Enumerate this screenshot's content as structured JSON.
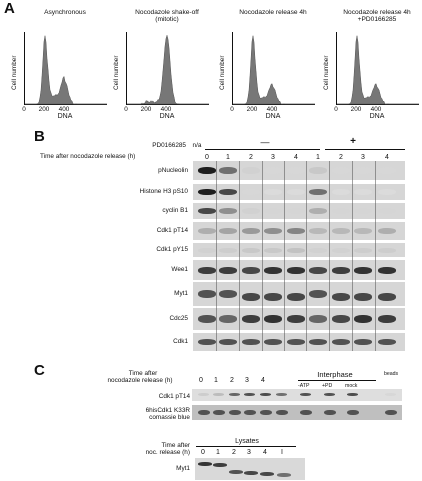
{
  "panelA": {
    "letter": "A",
    "ylabel": "Cell number",
    "xlabel": "DNA",
    "ticks": [
      "0",
      "200",
      "400"
    ],
    "histograms": [
      {
        "title_line1": "Asynchronous",
        "title_line2": "",
        "g1": 1.0,
        "g2": 0.32,
        "s": 0.12
      },
      {
        "title_line1": "Nocodazole shake-off",
        "title_line2": "(mitotic)",
        "g1": 0.04,
        "g2": 1.0,
        "s": 0.03
      },
      {
        "title_line1": "Nocodazole release 4h",
        "title_line2": "",
        "g1": 1.0,
        "g2": 0.24,
        "s": 0.09
      },
      {
        "title_line1": "Nocodazole release 4h",
        "title_line2": "+PD0166285",
        "g1": 1.0,
        "g2": 0.24,
        "s": 0.09
      }
    ]
  },
  "panelB": {
    "letter": "B",
    "inhibitor_label": "PD0166285",
    "na_label": "n/a",
    "minus_label": "—",
    "plus_label": "+",
    "time_label": "Time after nocodazole release (h)",
    "lanes": [
      "0",
      "1",
      "2",
      "3",
      "4",
      "1",
      "2",
      "3",
      "4"
    ],
    "rows": [
      {
        "label": "pNucleolin",
        "intensity": [
          0.95,
          0.55,
          0.08,
          0.05,
          0.05,
          0.12,
          0.05,
          0.05,
          0.05
        ]
      },
      {
        "label": "Histone H3 pS10",
        "intensity": [
          0.95,
          0.75,
          0.05,
          0.03,
          0.03,
          0.55,
          0.03,
          0.03,
          0.03
        ]
      },
      {
        "label": "cyclin B1",
        "intensity": [
          0.75,
          0.4,
          0.08,
          0.06,
          0.06,
          0.25,
          0.06,
          0.06,
          0.06
        ]
      },
      {
        "label": "Cdk1 pT14",
        "intensity": [
          0.25,
          0.3,
          0.35,
          0.4,
          0.45,
          0.2,
          0.2,
          0.2,
          0.25
        ]
      },
      {
        "label": "Cdk1 pY15",
        "intensity": [
          0.08,
          0.1,
          0.12,
          0.12,
          0.15,
          0.08,
          0.08,
          0.1,
          0.1
        ]
      },
      {
        "label": "Wee1",
        "intensity": [
          0.8,
          0.8,
          0.75,
          0.85,
          0.85,
          0.75,
          0.8,
          0.85,
          0.85
        ]
      },
      {
        "label": "Myt1",
        "intensity": [
          0.7,
          0.7,
          0.75,
          0.75,
          0.75,
          0.7,
          0.75,
          0.75,
          0.75
        ]
      },
      {
        "label": "Cdc25",
        "intensity": [
          0.7,
          0.6,
          0.8,
          0.85,
          0.8,
          0.6,
          0.75,
          0.85,
          0.8
        ]
      },
      {
        "label": "Cdk1",
        "intensity": [
          0.7,
          0.7,
          0.7,
          0.7,
          0.7,
          0.7,
          0.7,
          0.7,
          0.7
        ]
      }
    ]
  },
  "panelC": {
    "letter": "C",
    "time_label_line1": "Time after",
    "time_label_line2": "nocodazole release (h)",
    "lanes": [
      "0",
      "1",
      "2",
      "3",
      "4"
    ],
    "interphase_label": "Interphase",
    "interphase_lanes": [
      "-ATP",
      "+PD",
      "mock"
    ],
    "beads_label": "beads",
    "rows": [
      {
        "label_line1": "Cdk1 pT14",
        "label_line2": ""
      },
      {
        "label_line1": "6hisCdk1 K33R",
        "label_line2": "comassie blue"
      }
    ],
    "lysates": {
      "time_label_line1": "Time after",
      "time_label_line2": "noc. release (h)",
      "group_label": "Lysates",
      "lanes": [
        "0",
        "1",
        "2",
        "3",
        "4",
        "I"
      ],
      "row_label": "Myt1"
    }
  }
}
